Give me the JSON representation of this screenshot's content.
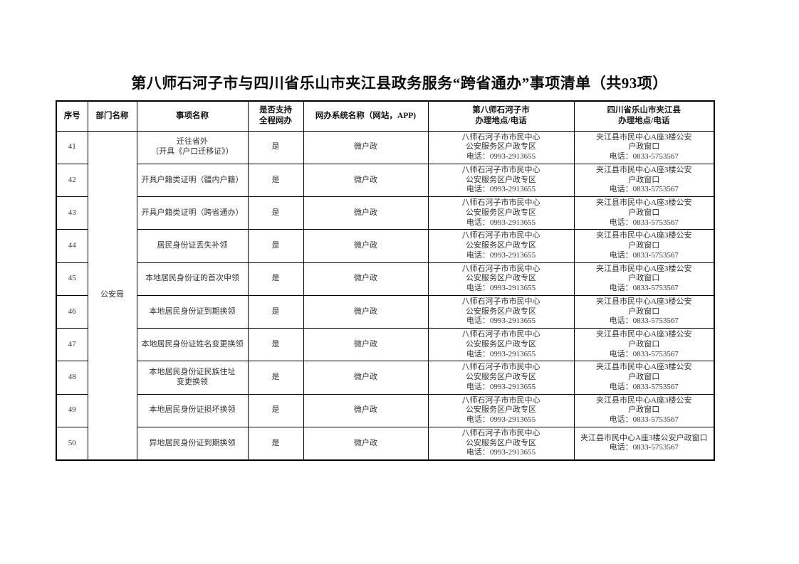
{
  "page": {
    "title": "第八师石河子市与四川省乐山市夹江县政务服务“跨省通办”事项清单（共93项）"
  },
  "table": {
    "headers": {
      "index": "序号",
      "department": "部门名称",
      "item": "事项名称",
      "online": "是否支持\n全程网办",
      "system": "网办系统名称（网站，APP)",
      "shihezi": "第八师石河子市\n办理地点/电话",
      "jiajiang": "四川省乐山市夹江县\n办理地点/电话"
    },
    "department": "公安局",
    "rows": [
      {
        "index": "41",
        "item": "迁往省外\n（开具《户口迁移证》）",
        "online": "是",
        "system": "微户政",
        "shihezi": "八师石河子市市民中心\n公安服务区户政专区\n电话：0993-2913655",
        "jiajiang": "夹江县市民中心A座3楼公安\n户政窗口\n电话：0833-5753567"
      },
      {
        "index": "42",
        "item": "开具户籍类证明（疆内户籍）",
        "online": "是",
        "system": "微户政",
        "shihezi": "八师石河子市市民中心\n公安服务区户政专区\n电话：0993-2913655",
        "jiajiang": "夹江县市民中心A座3楼公安\n户政窗口\n电话：0833-5753567"
      },
      {
        "index": "43",
        "item": "开具户籍类证明（跨省通办）",
        "online": "是",
        "system": "微户政",
        "shihezi": "八师石河子市市民中心\n公安服务区户政专区\n电话：0993-2913655",
        "jiajiang": "夹江县市民中心A座3楼公安\n户政窗口\n电话：0833-5753567"
      },
      {
        "index": "44",
        "item": "居民身份证丢失补领",
        "online": "是",
        "system": "微户政",
        "shihezi": "八师石河子市市民中心\n公安服务区户政专区\n电话：0993-2913655",
        "jiajiang": "夹江县市民中心A座3楼公安\n户政窗口\n电话：0833-5753567"
      },
      {
        "index": "45",
        "item": "本地居民身份证的首次申领",
        "online": "是",
        "system": "微户政",
        "shihezi": "八师石河子市市民中心\n公安服务区户政专区\n电话：0993-2913655",
        "jiajiang": "夹江县市民中心A座3楼公安\n户政窗口\n电话：0833-5753567"
      },
      {
        "index": "46",
        "item": "本地居民身份证到期换领",
        "online": "是",
        "system": "微户政",
        "shihezi": "八师石河子市市民中心\n公安服务区户政专区\n电话：0993-2913655",
        "jiajiang": "夹江县市民中心A座3楼公安\n户政窗口\n电话：0833-5753567"
      },
      {
        "index": "47",
        "item": "本地居民身份证姓名变更换领",
        "online": "是",
        "system": "微户政",
        "shihezi": "八师石河子市市民中心\n公安服务区户政专区\n电话：0993-2913655",
        "jiajiang": "夹江县市民中心A座3楼公安\n户政窗口\n电话：0833-5753567"
      },
      {
        "index": "48",
        "item": "本地居民身份证民族住址\n变更换领",
        "online": "是",
        "system": "微户政",
        "shihezi": "八师石河子市市民中心\n公安服务区户政专区\n电话：0993-2913655",
        "jiajiang": "夹江县市民中心A座3楼公安\n户政窗口\n电话：0833-5753567"
      },
      {
        "index": "49",
        "item": "本地居民身份证损坏换领",
        "online": "是",
        "system": "微户政",
        "shihezi": "八师石河子市市民中心\n公安服务区户政专区\n电话：0993-2913655",
        "jiajiang": "夹江县市民中心A座3楼公安\n户政窗口\n电话：0833-5753567"
      },
      {
        "index": "50",
        "item": "异地居民身份证到期换领",
        "online": "是",
        "system": "微户政",
        "shihezi": "八师石河子市市民中心\n公安服务区户政专区\n电话：0993-2913655",
        "jiajiang": "夹江县市民中心A座3楼公安户政窗口\n电话：0833-5753567"
      }
    ]
  }
}
